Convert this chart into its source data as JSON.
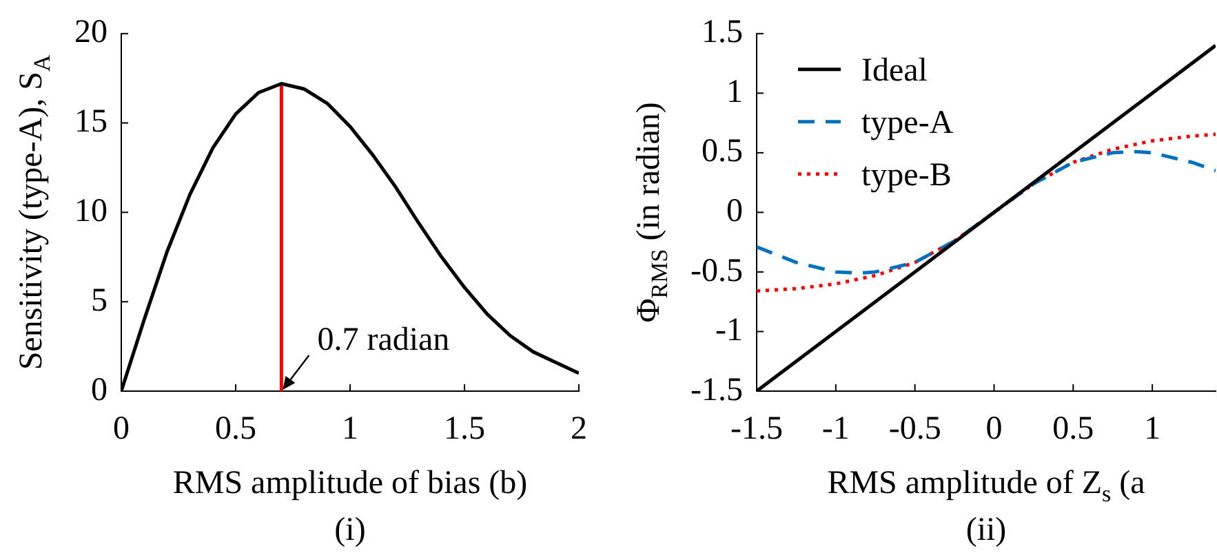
{
  "chart_data": [
    {
      "type": "line",
      "xlabel": "RMS amplitude of bias (b)",
      "ylabel": "Sensitivity (type-A), S$_{A}$",
      "xlim": [
        0,
        2
      ],
      "xticks": [
        0,
        0.5,
        1,
        1.5,
        2
      ],
      "ylim": [
        0,
        20
      ],
      "yticks": [
        0,
        5,
        10,
        15,
        20
      ],
      "grid": false,
      "legend": false,
      "marker": "none",
      "series": [
        {
          "color": "#000000",
          "line_style": "solid",
          "x": [
            0,
            0.1,
            0.2,
            0.3,
            0.4,
            0.5,
            0.6,
            0.7,
            0.8,
            0.9,
            1.0,
            1.1,
            1.2,
            1.3,
            1.4,
            1.5,
            1.6,
            1.7,
            1.8,
            1.9,
            2.0
          ],
          "values": [
            0,
            4,
            7.8,
            11,
            13.6,
            15.5,
            16.7,
            17.2,
            16.9,
            16.1,
            14.8,
            13.2,
            11.4,
            9.4,
            7.5,
            5.8,
            4.3,
            3.1,
            2.2,
            1.6,
            1.0
          ]
        },
        {
          "color": "#ff0000",
          "line_style": "solid",
          "x": [
            0.7,
            0.7
          ],
          "values": [
            0,
            17.2
          ]
        }
      ],
      "annotations": [
        {
          "text": "0.7 radian",
          "x": 0.7,
          "y": 0
        },
        "(i)"
      ]
    },
    {
      "type": "line",
      "xlabel": "RMS amplitude of Z$_{s}$ (a",
      "ylabel": "Φ$_{RMS}$ (in radian)",
      "xlim": [
        -1.5,
        1.4
      ],
      "xticks": [
        -1.5,
        -1,
        -0.5,
        0,
        0.5,
        1
      ],
      "ylim": [
        -1.5,
        1.5
      ],
      "yticks": [
        -1.5,
        -1,
        -0.5,
        0,
        0.5,
        1,
        1.5
      ],
      "grid": false,
      "legend": "top left",
      "marker": "none",
      "series": [
        {
          "name": "Ideal",
          "color": "#000000",
          "line_style": "solid",
          "x": [
            -1.5,
            1.4
          ],
          "values": [
            -1.5,
            1.4
          ]
        },
        {
          "name": "type-A",
          "color": "#0072bd",
          "line_style": "dashed",
          "x": [
            -1.5,
            -1.25,
            -1,
            -0.85,
            -0.75,
            -0.5,
            -0.25,
            0,
            0.25,
            0.5,
            0.75,
            0.9,
            1,
            1.25,
            1.4
          ],
          "values": [
            -0.29,
            -0.42,
            -0.5,
            -0.51,
            -0.5,
            -0.42,
            -0.24,
            0,
            0.24,
            0.42,
            0.5,
            0.51,
            0.5,
            0.42,
            0.35
          ]
        },
        {
          "name": "type-B",
          "color": "#ff0000",
          "line_style": "dotted",
          "x": [
            -1.5,
            -1.25,
            -1,
            -0.75,
            -0.5,
            -0.25,
            0,
            0.25,
            0.5,
            0.75,
            1,
            1.25,
            1.4
          ],
          "values": [
            -0.66,
            -0.64,
            -0.6,
            -0.53,
            -0.42,
            -0.24,
            0,
            0.24,
            0.42,
            0.53,
            0.6,
            0.64,
            0.655
          ]
        }
      ],
      "annotations": [
        "(ii)"
      ]
    }
  ]
}
